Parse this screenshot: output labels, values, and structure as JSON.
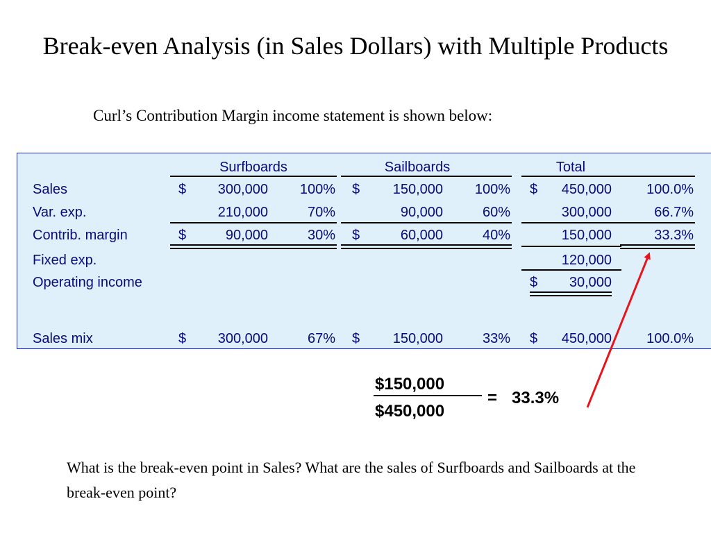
{
  "title": "Break-even Analysis (in Sales Dollars) with Multiple Products",
  "subtitle": "Curl’s Contribution Margin income statement is shown below:",
  "table": {
    "headers": {
      "surfboards": "Surfboards",
      "sailboards": "Sailboards",
      "total": "Total"
    },
    "rows": {
      "sales": {
        "label": "Sales",
        "surf_sign": "$",
        "surf_amount": "300,000",
        "surf_pct": "100%",
        "sail_sign": "$",
        "sail_amount": "150,000",
        "sail_pct": "100%",
        "total_sign": "$",
        "total_amount": "450,000",
        "total_pct": "100.0%"
      },
      "var_exp": {
        "label": "Var. exp.",
        "surf_amount": "210,000",
        "surf_pct": "70%",
        "sail_amount": "90,000",
        "sail_pct": "60%",
        "total_amount": "300,000",
        "total_pct": "66.7%"
      },
      "contrib": {
        "label": "Contrib. margin",
        "surf_sign": "$",
        "surf_amount": "90,000",
        "surf_pct": "30%",
        "sail_sign": "$",
        "sail_amount": "60,000",
        "sail_pct": "40%",
        "total_amount": "150,000",
        "total_pct": "33.3%"
      },
      "fixed": {
        "label": "Fixed exp.",
        "total_amount": "120,000"
      },
      "operating": {
        "label": "Operating income",
        "total_sign": "$",
        "total_amount": "30,000"
      },
      "mix": {
        "label": "Sales mix",
        "surf_sign": "$",
        "surf_amount": "300,000",
        "surf_pct": "67%",
        "sail_sign": "$",
        "sail_amount": "150,000",
        "sail_pct": "33%",
        "total_sign": "$",
        "total_amount": "450,000",
        "total_pct": "100.0%"
      }
    }
  },
  "formula": {
    "numerator": "$150,000",
    "denominator": "$450,000",
    "equals": "=",
    "result": "33.3%"
  },
  "question": "What is the break-even point in Sales? What are the sales of Surfboards and Sailboards at the break-even point?",
  "colors": {
    "panel_bg": "#dff0fb",
    "panel_border": "#1f2e9e",
    "table_text": "#0a0a78",
    "arrow": "#e8141c"
  }
}
